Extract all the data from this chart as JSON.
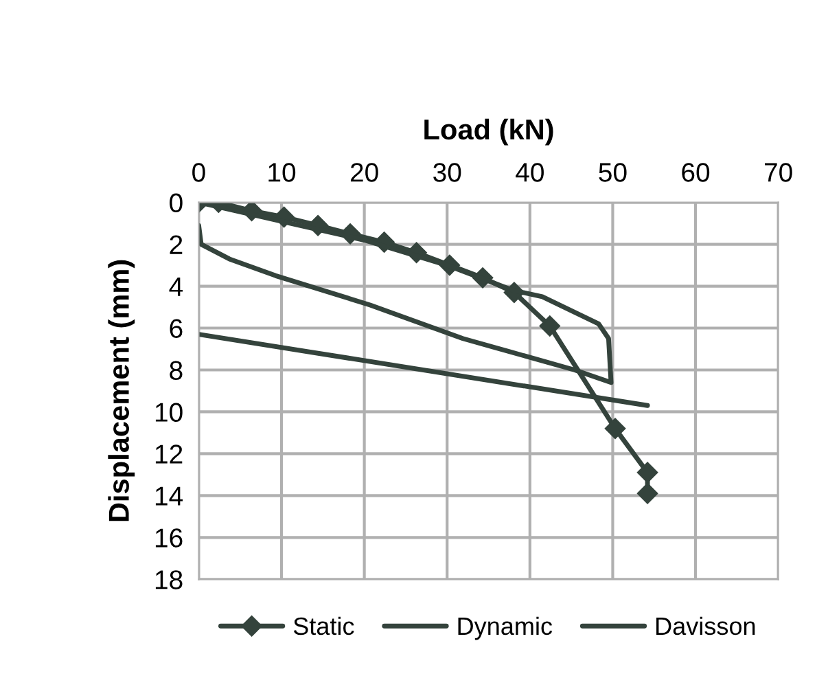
{
  "chart_data": {
    "type": "line",
    "xlabel": "Load (kN)",
    "ylabel": "Displacement (mm)",
    "xlim": [
      0,
      70
    ],
    "xticks": [
      0,
      10,
      20,
      30,
      40,
      50,
      60,
      70
    ],
    "ylim": [
      18,
      0
    ],
    "yticks": [
      0,
      2,
      4,
      6,
      8,
      10,
      12,
      14,
      16,
      18
    ],
    "grid": true,
    "legend": "bottom",
    "series": [
      {
        "name": "Static",
        "color": "#34433c",
        "marker": "diamond",
        "x": [
          0,
          2.4,
          6.4,
          10.3,
          14.4,
          18.3,
          22.4,
          26.3,
          30.3,
          34.3,
          38.1,
          42.4,
          50.3,
          54.2,
          54.2
        ],
        "values": [
          0,
          0,
          0.4,
          0.7,
          1.1,
          1.5,
          1.9,
          2.4,
          3.0,
          3.6,
          4.3,
          5.9,
          10.8,
          12.9,
          13.9
        ]
      },
      {
        "name": "Dynamic",
        "color": "#34433c",
        "marker": "none",
        "x": [
          0,
          10,
          20,
          30,
          38,
          41.5,
          48.3,
          49.5,
          49.8,
          45.4,
          31.9,
          20.7,
          9.3,
          3.7,
          0.3,
          0
        ],
        "values": [
          0,
          0.9,
          1.8,
          3.0,
          4.2,
          4.5,
          5.8,
          6.5,
          8.6,
          8.0,
          6.5,
          4.9,
          3.5,
          2.7,
          2.0,
          1.1
        ]
      },
      {
        "name": "Davisson",
        "color": "#34433c",
        "marker": "none",
        "x": [
          0,
          54.2
        ],
        "values": [
          6.3,
          9.7
        ]
      }
    ]
  }
}
